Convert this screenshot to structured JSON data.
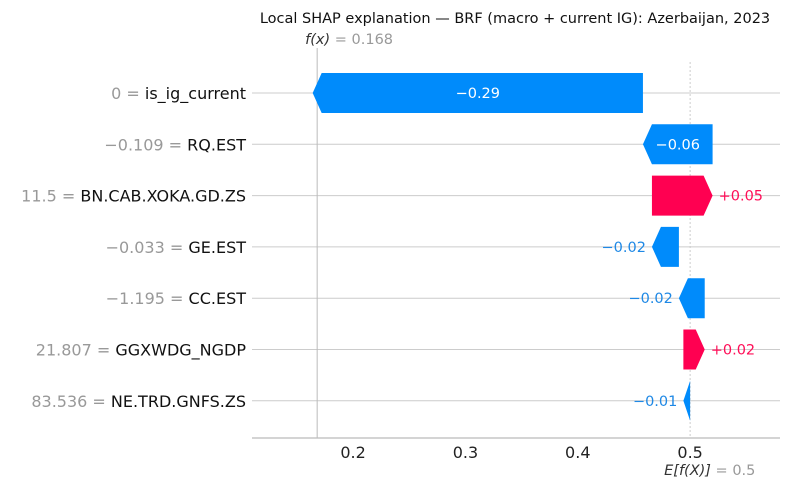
{
  "chart_data": {
    "type": "waterfall",
    "title": "Local SHAP explanation — BRF (macro + current IG): Azerbaijan, 2023",
    "fx": {
      "label_func": "f(x)",
      "value_text": "0.168",
      "value": 0.168
    },
    "base": {
      "label_func": "E[f(X)]",
      "value_text": "0.5",
      "value": 0.5
    },
    "xlim": [
      0.11,
      0.58
    ],
    "xticks": [
      0.2,
      0.3,
      0.4,
      0.5
    ],
    "xtick_labels": [
      "0.2",
      "0.3",
      "0.4",
      "0.5"
    ],
    "grid": true,
    "colors": {
      "negative": "#008bfb",
      "positive": "#ff0051",
      "neg_text": "#1e88e5",
      "pos_text": "#ff0d57"
    },
    "features": [
      {
        "value_text": "0",
        "name": "is_ig_current",
        "shap": -0.294,
        "shap_text": "−0.29"
      },
      {
        "value_text": "−0.109",
        "name": "RQ.EST",
        "shap": -0.062,
        "shap_text": "−0.06"
      },
      {
        "value_text": "11.5",
        "name": "BN.CAB.XOKA.GD.ZS",
        "shap": 0.054,
        "shap_text": "+0.05"
      },
      {
        "value_text": "−0.033",
        "name": "GE.EST",
        "shap": -0.024,
        "shap_text": "−0.02"
      },
      {
        "value_text": "−1.195",
        "name": "CC.EST",
        "shap": -0.023,
        "shap_text": "−0.02"
      },
      {
        "value_text": "21.807",
        "name": "GGXWDG_NGDP",
        "shap": 0.019,
        "shap_text": "+0.02"
      },
      {
        "value_text": "83.536",
        "name": "NE.TRD.GNFS.ZS",
        "shap": -0.006,
        "shap_text": "−0.01"
      }
    ]
  }
}
